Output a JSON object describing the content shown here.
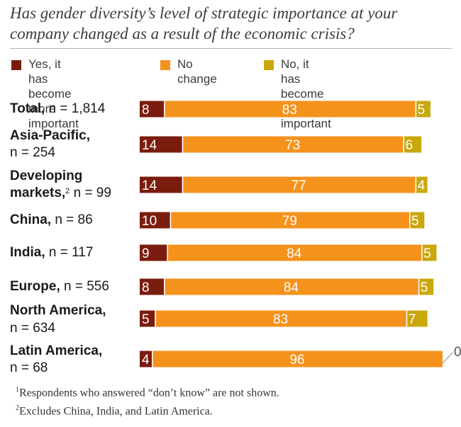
{
  "title": "Has gender diversity’s level of strategic importance at your company changed as a result of the economic crisis?",
  "colors": {
    "yes": "#7a1c0e",
    "no_change": "#f5921c",
    "no": "#c9a80c",
    "bar_text": "#ffffff",
    "outside_text": "#555555"
  },
  "legend": [
    {
      "label": "Yes, it has become\nmore important",
      "color": "#7a1c0e"
    },
    {
      "label": "No change",
      "color": "#f5921c"
    },
    {
      "label": "No, it has become\nless important",
      "color": "#c9a80c"
    }
  ],
  "rows": [
    {
      "name": "Total,",
      "n_text": " n = 1,814",
      "name2": "",
      "n2": ""
    },
    {
      "name": "Asia-Pacific,",
      "n_text": "",
      "name2": "",
      "n2": "n = 254"
    },
    {
      "name": "Developing",
      "n_text": "",
      "name2": "markets,",
      "sup": "2",
      "n2": " n = 99"
    },
    {
      "name": "China,",
      "n_text": " n = 86",
      "name2": "",
      "n2": ""
    },
    {
      "name": "India,",
      "n_text": " n = 117",
      "name2": "",
      "n2": ""
    },
    {
      "name": "Europe,",
      "n_text": " n = 556",
      "name2": "",
      "n2": ""
    },
    {
      "name": "North America,",
      "n_text": "",
      "name2": "",
      "n2": "n = 634"
    },
    {
      "name": "Latin America,",
      "n_text": "",
      "name2": "",
      "n2": "n = 68"
    }
  ],
  "chart_data": {
    "type": "bar",
    "orientation": "horizontal",
    "stacked": true,
    "categories": [
      "Total, n = 1,814",
      "Asia-Pacific, n = 254",
      "Developing markets, n = 99",
      "China, n = 86",
      "India, n = 117",
      "Europe, n = 556",
      "North America, n = 634",
      "Latin America, n = 68"
    ],
    "series": [
      {
        "name": "Yes, it has become more important",
        "values": [
          8,
          14,
          14,
          10,
          9,
          8,
          5,
          4
        ]
      },
      {
        "name": "No change",
        "values": [
          83,
          73,
          77,
          79,
          84,
          84,
          83,
          96
        ]
      },
      {
        "name": "No, it has become less important",
        "values": [
          5,
          6,
          4,
          5,
          5,
          5,
          7,
          0
        ]
      }
    ],
    "xlim": [
      0,
      100
    ]
  },
  "footnotes": [
    {
      "mark": "1",
      "text": "Respondents who answered “don’t know” are not shown."
    },
    {
      "mark": "2",
      "text": "Excludes China, India, and Latin America."
    }
  ]
}
